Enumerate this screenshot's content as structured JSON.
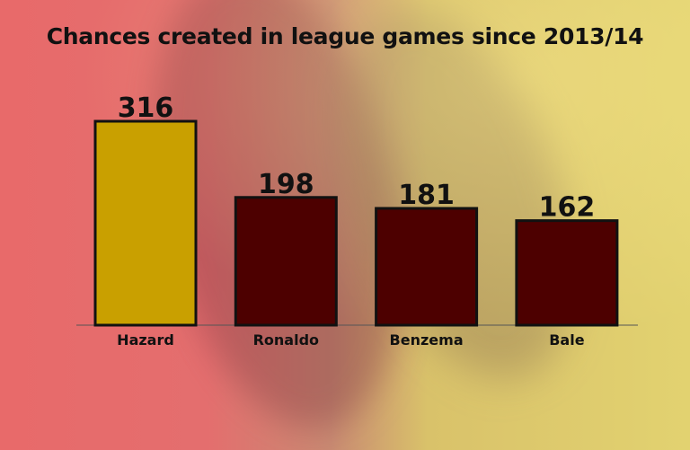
{
  "chart_data": {
    "type": "bar",
    "title": "Chances created in league games since 2013/14",
    "categories": [
      "Hazard",
      "Ronaldo",
      "Benzema",
      "Bale"
    ],
    "values": [
      316,
      198,
      181,
      162
    ],
    "colors": [
      "#c9a000",
      "#4d0000",
      "#4d0000",
      "#4d0000"
    ],
    "bar_outline": "#111111",
    "ylim": [
      0,
      316
    ],
    "grid": false,
    "data_labels": true
  }
}
